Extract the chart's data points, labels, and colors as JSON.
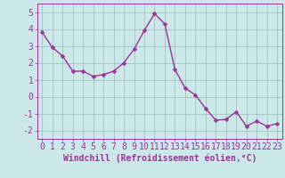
{
  "x": [
    0,
    1,
    2,
    3,
    4,
    5,
    6,
    7,
    8,
    9,
    10,
    11,
    12,
    13,
    14,
    15,
    16,
    17,
    18,
    19,
    20,
    21,
    22,
    23
  ],
  "y": [
    3.8,
    2.9,
    2.4,
    1.5,
    1.5,
    1.2,
    1.3,
    1.5,
    2.0,
    2.8,
    3.9,
    4.9,
    4.3,
    1.6,
    0.5,
    0.1,
    -0.7,
    -1.4,
    -1.35,
    -0.9,
    -1.75,
    -1.45,
    -1.75,
    -1.6
  ],
  "line_color": "#993399",
  "marker": "D",
  "marker_size": 2.5,
  "bg_color": "#cce8e8",
  "grid_color": "#99bbbb",
  "xlabel": "Windchill (Refroidissement éolien,°C)",
  "ylim": [
    -2.5,
    5.5
  ],
  "xlim": [
    -0.5,
    23.5
  ],
  "yticks": [
    -2,
    -1,
    0,
    1,
    2,
    3,
    4,
    5
  ],
  "xticks": [
    0,
    1,
    2,
    3,
    4,
    5,
    6,
    7,
    8,
    9,
    10,
    11,
    12,
    13,
    14,
    15,
    16,
    17,
    18,
    19,
    20,
    21,
    22,
    23
  ],
  "axis_color": "#993399",
  "tick_label_color": "#993399",
  "xlabel_color": "#993399",
  "xlabel_fontsize": 7,
  "tick_fontsize": 7,
  "line_width": 1.0
}
